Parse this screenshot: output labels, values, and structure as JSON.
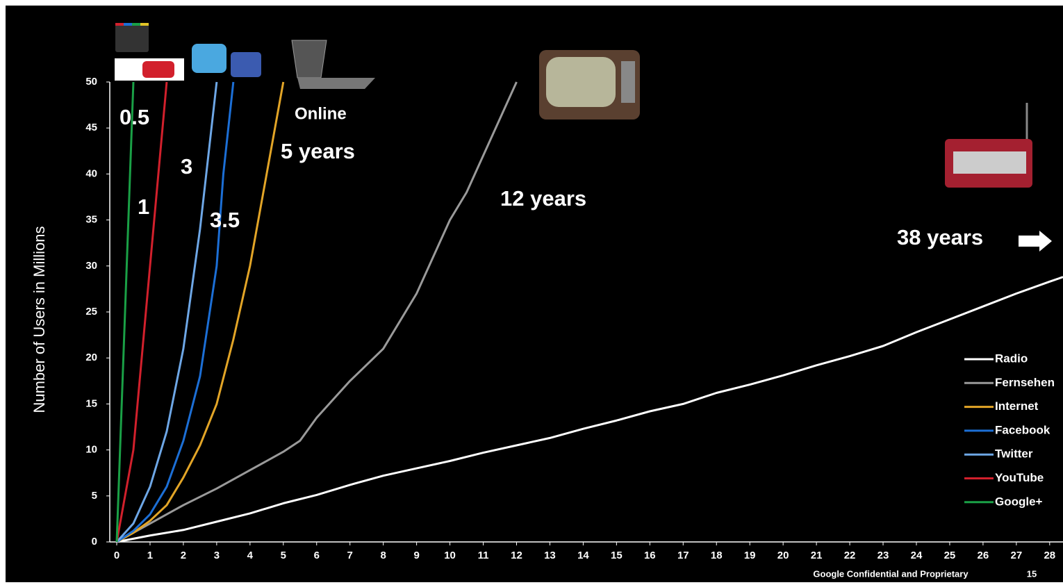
{
  "chart_data": {
    "type": "line",
    "y_label": "Number of Users in Millions",
    "xlim": [
      0,
      28.4
    ],
    "ylim": [
      0,
      50
    ],
    "xticks": [
      0,
      1,
      2,
      3,
      4,
      5,
      6,
      7,
      8,
      9,
      10,
      11,
      12,
      13,
      14,
      15,
      16,
      17,
      18,
      19,
      20,
      21,
      22,
      23,
      24,
      25,
      26,
      27,
      28
    ],
    "yticks": [
      0,
      5,
      10,
      15,
      20,
      25,
      30,
      35,
      40,
      45,
      50
    ],
    "legend": "bottom-right",
    "series": [
      {
        "name": "Radio",
        "color": "#ffffff",
        "x": [
          0,
          1,
          2,
          3,
          4,
          5,
          6,
          7,
          8,
          9,
          10,
          11,
          12,
          13,
          14,
          15,
          16,
          17,
          18,
          19,
          20,
          21,
          22,
          23,
          24,
          25,
          26,
          27,
          28,
          28.4
        ],
        "values": [
          0,
          0.7,
          1.3,
          2.2,
          3.1,
          4.2,
          5.1,
          6.2,
          7.2,
          8,
          8.8,
          9.7,
          10.5,
          11.3,
          12.3,
          13.2,
          14.2,
          15,
          16.2,
          17.1,
          18.1,
          19.2,
          20.2,
          21.3,
          22.8,
          24.2,
          25.6,
          27,
          28.3,
          28.8
        ]
      },
      {
        "name": "Fernsehen",
        "color": "#9a9a9a",
        "x": [
          0,
          1,
          2,
          3,
          4,
          5,
          5.5,
          6,
          7,
          8,
          9,
          10,
          10.5,
          11,
          12
        ],
        "values": [
          0,
          2,
          4,
          5.8,
          7.8,
          9.8,
          11,
          13.5,
          17.5,
          21,
          27,
          35,
          38,
          42,
          50
        ]
      },
      {
        "name": "Internet",
        "color": "#e3a527",
        "x": [
          0,
          0.5,
          1,
          1.5,
          2,
          2.5,
          3,
          3.5,
          4,
          4.5,
          5
        ],
        "values": [
          0,
          1,
          2.3,
          4,
          7,
          10.5,
          15,
          22,
          30,
          40,
          50
        ]
      },
      {
        "name": "Facebook",
        "color": "#1c6fd6",
        "x": [
          0,
          0.5,
          1,
          1.5,
          2,
          2.5,
          3,
          3.2,
          3.5
        ],
        "values": [
          0,
          1.2,
          3,
          6,
          11,
          18,
          30,
          40,
          50
        ]
      },
      {
        "name": "Twitter",
        "color": "#6ea7e6",
        "x": [
          0,
          0.5,
          1,
          1.5,
          2,
          2.5,
          3
        ],
        "values": [
          0,
          2,
          6,
          12,
          21,
          34,
          50
        ]
      },
      {
        "name": "YouTube",
        "color": "#d2202c",
        "x": [
          0,
          0.5,
          1,
          1.5
        ],
        "values": [
          0,
          10,
          30,
          50
        ]
      },
      {
        "name": "Google+",
        "color": "#1aa046",
        "x": [
          0,
          0.25,
          0.5
        ],
        "values": [
          0,
          25,
          50
        ]
      }
    ],
    "annotations": [
      "0.5",
      "1",
      "3",
      "3.5",
      "Online",
      "5 years",
      "12 years",
      "38 years"
    ],
    "footer": "Google Confidential and Proprietary",
    "page_number": "15"
  }
}
